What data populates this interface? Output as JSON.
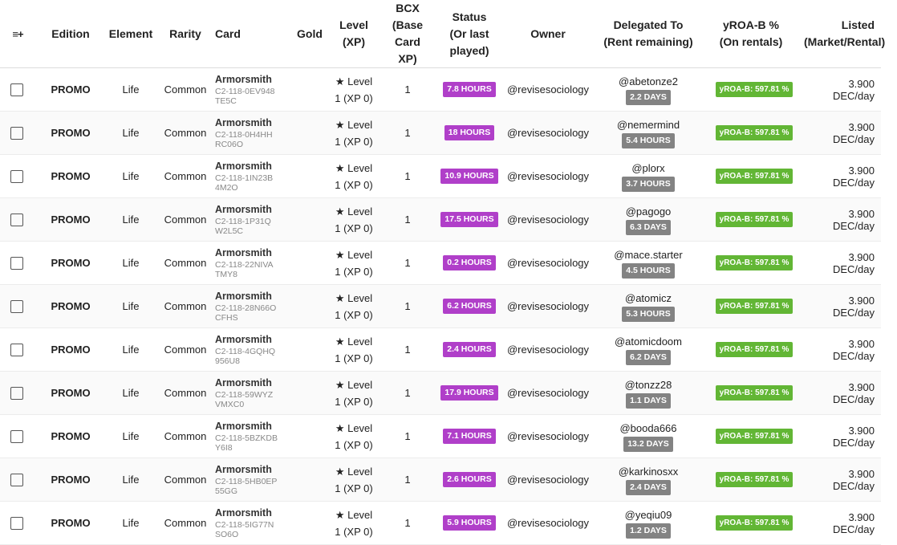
{
  "header": {
    "menu_icon": "≡+",
    "edition": "Edition",
    "element": "Element",
    "rarity": "Rarity",
    "card": "Card",
    "gold": "Gold",
    "level_l1": "Level",
    "level_l2": "(XP)",
    "bcx_l1": "BCX",
    "bcx_l2": "(Base",
    "bcx_l3": "Card",
    "bcx_l4": "XP)",
    "status_l1": "Status",
    "status_l2": "(Or last",
    "status_l3": "played)",
    "owner": "Owner",
    "delegated_l1": "Delegated To",
    "delegated_l2": "(Rent remaining)",
    "yroa_l1": "yROA-B %",
    "yroa_l2": "(On rentals)",
    "listed_l1": "Listed",
    "listed_l2": "(Market/Rental)"
  },
  "rows": [
    {
      "edition": "PROMO",
      "element": "Life",
      "rarity": "Common",
      "card": "Armorsmith",
      "uid": "C2-118-0EV948TE5C",
      "level": "Level",
      "xp": "1 (XP 0)",
      "bcx": "1",
      "status": "7.8 HOURS",
      "owner": "@revisesociology",
      "delegate": "@abetonze2",
      "rent": "2.2 DAYS",
      "yroa": "yROA-B: 597.81 %",
      "listed": "3.900 DEC/day"
    },
    {
      "edition": "PROMO",
      "element": "Life",
      "rarity": "Common",
      "card": "Armorsmith",
      "uid": "C2-118-0H4HHRC06O",
      "level": "Level",
      "xp": "1 (XP 0)",
      "bcx": "1",
      "status": "18 HOURS",
      "owner": "@revisesociology",
      "delegate": "@nemermind",
      "rent": "5.4 HOURS",
      "yroa": "yROA-B: 597.81 %",
      "listed": "3.900 DEC/day"
    },
    {
      "edition": "PROMO",
      "element": "Life",
      "rarity": "Common",
      "card": "Armorsmith",
      "uid": "C2-118-1IN23B4M2O",
      "level": "Level",
      "xp": "1 (XP 0)",
      "bcx": "1",
      "status": "10.9 HOURS",
      "owner": "@revisesociology",
      "delegate": "@plorx",
      "rent": "3.7 HOURS",
      "yroa": "yROA-B: 597.81 %",
      "listed": "3.900 DEC/day"
    },
    {
      "edition": "PROMO",
      "element": "Life",
      "rarity": "Common",
      "card": "Armorsmith",
      "uid": "C2-118-1P31QW2L5C",
      "level": "Level",
      "xp": "1 (XP 0)",
      "bcx": "1",
      "status": "17.5 HOURS",
      "owner": "@revisesociology",
      "delegate": "@pagogo",
      "rent": "6.3 DAYS",
      "yroa": "yROA-B: 597.81 %",
      "listed": "3.900 DEC/day"
    },
    {
      "edition": "PROMO",
      "element": "Life",
      "rarity": "Common",
      "card": "Armorsmith",
      "uid": "C2-118-22NIVATMY8",
      "level": "Level",
      "xp": "1 (XP 0)",
      "bcx": "1",
      "status": "0.2 HOURS",
      "owner": "@revisesociology",
      "delegate": "@mace.starter",
      "rent": "4.5 HOURS",
      "yroa": "yROA-B: 597.81 %",
      "listed": "3.900 DEC/day"
    },
    {
      "edition": "PROMO",
      "element": "Life",
      "rarity": "Common",
      "card": "Armorsmith",
      "uid": "C2-118-28N66OCFHS",
      "level": "Level",
      "xp": "1 (XP 0)",
      "bcx": "1",
      "status": "6.2 HOURS",
      "owner": "@revisesociology",
      "delegate": "@atomicz",
      "rent": "5.3 HOURS",
      "yroa": "yROA-B: 597.81 %",
      "listed": "3.900 DEC/day"
    },
    {
      "edition": "PROMO",
      "element": "Life",
      "rarity": "Common",
      "card": "Armorsmith",
      "uid": "C2-118-4GQHQ956U8",
      "level": "Level",
      "xp": "1 (XP 0)",
      "bcx": "1",
      "status": "2.4 HOURS",
      "owner": "@revisesociology",
      "delegate": "@atomicdoom",
      "rent": "6.2 DAYS",
      "yroa": "yROA-B: 597.81 %",
      "listed": "3.900 DEC/day"
    },
    {
      "edition": "PROMO",
      "element": "Life",
      "rarity": "Common",
      "card": "Armorsmith",
      "uid": "C2-118-59WYZVMXC0",
      "level": "Level",
      "xp": "1 (XP 0)",
      "bcx": "1",
      "status": "17.9 HOURS",
      "owner": "@revisesociology",
      "delegate": "@tonzz28",
      "rent": "1.1 DAYS",
      "yroa": "yROA-B: 597.81 %",
      "listed": "3.900 DEC/day"
    },
    {
      "edition": "PROMO",
      "element": "Life",
      "rarity": "Common",
      "card": "Armorsmith",
      "uid": "C2-118-5BZKDBY6I8",
      "level": "Level",
      "xp": "1 (XP 0)",
      "bcx": "1",
      "status": "7.1 HOURS",
      "owner": "@revisesociology",
      "delegate": "@booda666",
      "rent": "13.2 DAYS",
      "yroa": "yROA-B: 597.81 %",
      "listed": "3.900 DEC/day"
    },
    {
      "edition": "PROMO",
      "element": "Life",
      "rarity": "Common",
      "card": "Armorsmith",
      "uid": "C2-118-5HB0EP55GG",
      "level": "Level",
      "xp": "1 (XP 0)",
      "bcx": "1",
      "status": "2.6 HOURS",
      "owner": "@revisesociology",
      "delegate": "@karkinosxx",
      "rent": "2.4 DAYS",
      "yroa": "yROA-B: 597.81 %",
      "listed": "3.900 DEC/day"
    },
    {
      "edition": "PROMO",
      "element": "Life",
      "rarity": "Common",
      "card": "Armorsmith",
      "uid": "C2-118-5IG77NSO6O",
      "level": "Level",
      "xp": "1 (XP 0)",
      "bcx": "1",
      "status": "5.9 HOURS",
      "owner": "@revisesociology",
      "delegate": "@yeqiu09",
      "rent": "1.2 DAYS",
      "yroa": "yROA-B: 597.81 %",
      "listed": "3.900 DEC/day"
    }
  ],
  "colors": {
    "status_badge": "#b03fc9",
    "rent_badge": "#838383",
    "yroa_badge": "#62b635"
  },
  "icons": {
    "level": "star-icon",
    "header_menu": "column-menu-icon"
  }
}
